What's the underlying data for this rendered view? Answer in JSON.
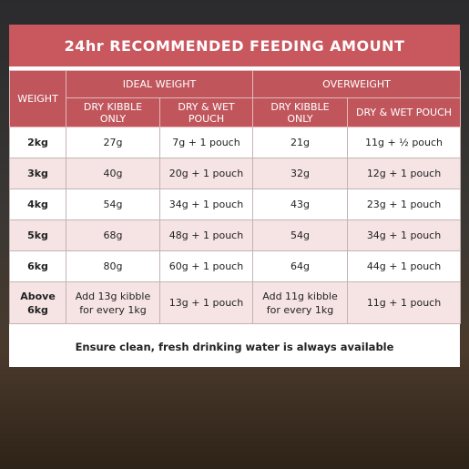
{
  "header": {
    "title": "24hr RECOMMENDED FEEDING AMOUNT"
  },
  "table": {
    "weight_header": "WEIGHT",
    "groups": [
      "IDEAL WEIGHT",
      "OVERWEIGHT"
    ],
    "subheaders": [
      "DRY KIBBLE ONLY",
      "DRY & WET POUCH",
      "DRY KIBBLE ONLY",
      "DRY & WET POUCH"
    ],
    "rows": [
      [
        "2kg",
        "27g",
        "7g + 1 pouch",
        "21g",
        "11g + ½ pouch"
      ],
      [
        "3kg",
        "40g",
        "20g + 1 pouch",
        "32g",
        "12g + 1 pouch"
      ],
      [
        "4kg",
        "54g",
        "34g + 1 pouch",
        "43g",
        "23g + 1 pouch"
      ],
      [
        "5kg",
        "68g",
        "48g + 1 pouch",
        "54g",
        "34g + 1 pouch"
      ],
      [
        "6kg",
        "80g",
        "60g + 1 pouch",
        "64g",
        "44g + 1 pouch"
      ],
      [
        "Above 6kg",
        "Add 13g kibble for every 1kg",
        "13g + 1 pouch",
        "Add 11g kibble for every 1kg",
        "11g + 1 pouch"
      ]
    ]
  },
  "footer": {
    "note": "Ensure clean, fresh drinking water is always available"
  }
}
